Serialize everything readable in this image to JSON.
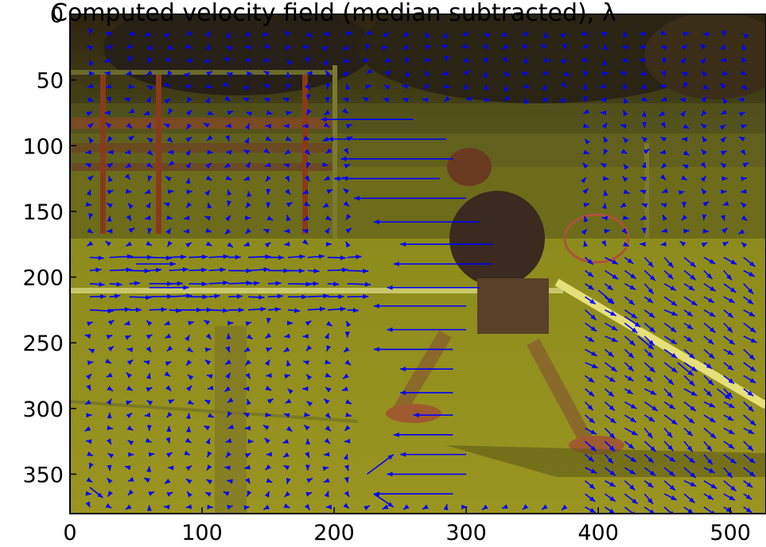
{
  "chart_data": {
    "type": "quiver",
    "title": "Computed velocity field (median subtracted), λ",
    "xlabel": "",
    "ylabel": "",
    "xlim": [
      0,
      527
    ],
    "ylim": [
      0,
      380
    ],
    "y_inverted": true,
    "grid": false,
    "x_ticks": [
      0,
      100,
      200,
      300,
      400,
      500
    ],
    "y_ticks": [
      0,
      50,
      100,
      150,
      200,
      250,
      300,
      350
    ],
    "arrow_color": "#0000ff",
    "background": "red/green anaglyph photo of a tennis player on a court",
    "vectors": [
      {
        "x": 260,
        "y": 80,
        "u": -70,
        "v": 0
      },
      {
        "x": 285,
        "y": 95,
        "u": -90,
        "v": 0
      },
      {
        "x": 290,
        "y": 110,
        "u": -85,
        "v": 0
      },
      {
        "x": 280,
        "y": 125,
        "u": -80,
        "v": 0
      },
      {
        "x": 300,
        "y": 140,
        "u": -85,
        "v": 0
      },
      {
        "x": 310,
        "y": 158,
        "u": -80,
        "v": 0
      },
      {
        "x": 320,
        "y": 175,
        "u": -70,
        "v": 0
      },
      {
        "x": 320,
        "y": 190,
        "u": -75,
        "v": 0
      },
      {
        "x": 310,
        "y": 208,
        "u": -70,
        "v": 0
      },
      {
        "x": 300,
        "y": 222,
        "u": -70,
        "v": 0
      },
      {
        "x": 300,
        "y": 240,
        "u": -60,
        "v": 0
      },
      {
        "x": 290,
        "y": 255,
        "u": -60,
        "v": 0
      },
      {
        "x": 290,
        "y": 270,
        "u": -40,
        "v": 0
      },
      {
        "x": 290,
        "y": 288,
        "u": -40,
        "v": 0
      },
      {
        "x": 290,
        "y": 305,
        "u": -30,
        "v": 0
      },
      {
        "x": 290,
        "y": 320,
        "u": -45,
        "v": 0
      },
      {
        "x": 300,
        "y": 335,
        "u": -50,
        "v": 0
      },
      {
        "x": 300,
        "y": 350,
        "u": -60,
        "v": 0
      },
      {
        "x": 290,
        "y": 365,
        "u": -60,
        "v": 0
      },
      {
        "x": 50,
        "y": 190,
        "u": 30,
        "v": 0
      },
      {
        "x": 60,
        "y": 208,
        "u": 30,
        "v": 0
      },
      {
        "x": 80,
        "y": 225,
        "u": 20,
        "v": 0
      },
      {
        "x": 225,
        "y": 350,
        "u": 20,
        "v": -15
      },
      {
        "x": 230,
        "y": 365,
        "u": 15,
        "v": 10
      },
      {
        "x": 15,
        "y": 360,
        "u": 10,
        "v": 8
      },
      {
        "x": 430,
        "y": 245,
        "u": 12,
        "v": 10
      },
      {
        "x": 460,
        "y": 265,
        "u": 12,
        "v": 10
      },
      {
        "x": 490,
        "y": 285,
        "u": 10,
        "v": 8
      },
      {
        "x": 400,
        "y": 210,
        "u": 12,
        "v": 10
      },
      {
        "x": 420,
        "y": 230,
        "u": 12,
        "v": 8
      }
    ]
  }
}
